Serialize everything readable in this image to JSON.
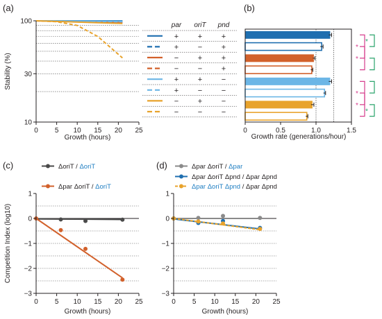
{
  "colors": {
    "dark_blue": "#1f6fb0",
    "light_blue": "#6cb6e6",
    "orange": "#d2612b",
    "gold": "#e8a32c",
    "gray": "#8a8a8a",
    "dark_gray": "#4a4a4a",
    "sig_magenta": "#d63c8c",
    "sig_green": "#2aa36b",
    "label_blue": "#1f7ec2"
  },
  "chart_data": [
    {
      "panel": "(a)",
      "type": "line",
      "xlabel": "Growth (hours)",
      "ylabel": "Stability (%)",
      "scale_y": "log",
      "xlim": [
        0,
        25
      ],
      "ylim": [
        10,
        100
      ],
      "xticks": [
        "0",
        "5",
        "10",
        "15",
        "20",
        "25"
      ],
      "yticks": [
        "10",
        "30",
        "100"
      ],
      "series": [
        {
          "color": "dark_blue",
          "dash": false,
          "x": [
            0,
            21
          ],
          "y": [
            100,
            100
          ]
        },
        {
          "color": "dark_blue",
          "dash": true,
          "x": [
            0,
            21
          ],
          "y": [
            100,
            99
          ]
        },
        {
          "color": "orange",
          "dash": false,
          "x": [
            0,
            21
          ],
          "y": [
            100,
            97
          ]
        },
        {
          "color": "orange",
          "dash": true,
          "x": [
            0,
            21
          ],
          "y": [
            100,
            97
          ]
        },
        {
          "color": "light_blue",
          "dash": false,
          "x": [
            0,
            21
          ],
          "y": [
            100,
            99
          ]
        },
        {
          "color": "light_blue",
          "dash": true,
          "x": [
            0,
            21
          ],
          "y": [
            100,
            98
          ]
        },
        {
          "color": "gold",
          "dash": false,
          "x": [
            0,
            21
          ],
          "y": [
            100,
            94
          ]
        },
        {
          "color": "gold",
          "dash": true,
          "x": [
            0,
            5,
            10,
            15,
            21
          ],
          "y": [
            100,
            98,
            90,
            70,
            43
          ]
        }
      ]
    },
    {
      "panel": "(b)",
      "type": "bar",
      "orientation": "horizontal",
      "xlabel": "Growth rate (generations/hour)",
      "xlim": [
        0,
        1.5
      ],
      "xticks": [
        "0",
        "0.5",
        "1.0",
        "1.5"
      ],
      "reference_lines": [
        1.0,
        1.25
      ],
      "bars": [
        {
          "color": "dark_blue",
          "filled": true,
          "value": 1.2,
          "err": 0.02
        },
        {
          "color": "dark_blue",
          "filled": false,
          "value": 1.08,
          "err": 0.02
        },
        {
          "color": "orange",
          "filled": true,
          "value": 0.97,
          "err": 0.015
        },
        {
          "color": "orange",
          "filled": false,
          "value": 0.94,
          "err": 0.015
        },
        {
          "color": "light_blue",
          "filled": true,
          "value": 1.2,
          "err": 0.02
        },
        {
          "color": "light_blue",
          "filled": false,
          "value": 1.12,
          "err": 0.015
        },
        {
          "color": "gold",
          "filled": true,
          "value": 0.95,
          "err": 0.02
        },
        {
          "color": "gold",
          "filled": false,
          "value": 0.87,
          "err": 0.015
        }
      ],
      "significance": [
        {
          "color": "sig_green",
          "from": 0,
          "to": 1,
          "mark": "*"
        },
        {
          "color": "sig_magenta",
          "from": 0,
          "to": 2,
          "mark": "*"
        },
        {
          "color": "sig_magenta",
          "from": 1,
          "to": 3,
          "mark": "*"
        },
        {
          "color": "sig_green",
          "from": 2,
          "to": 3,
          "mark": ""
        },
        {
          "color": "sig_green",
          "from": 4,
          "to": 5,
          "mark": ""
        },
        {
          "color": "sig_magenta",
          "from": 4,
          "to": 6,
          "mark": "*"
        },
        {
          "color": "sig_magenta",
          "from": 5,
          "to": 7,
          "mark": "*"
        },
        {
          "color": "sig_green",
          "from": 6,
          "to": 7,
          "mark": "*"
        }
      ]
    },
    {
      "panel": "(c)",
      "type": "scatter",
      "xlabel": "Growth (hours)",
      "ylabel": "Competition Index (log10)",
      "xlim": [
        0,
        25
      ],
      "ylim": [
        -3,
        1
      ],
      "xticks": [
        "0",
        "5",
        "10",
        "15",
        "20",
        "25"
      ],
      "yticks": [
        "1",
        "0",
        "−1",
        "−2",
        "−3"
      ],
      "series": [
        {
          "color": "dark_gray",
          "points": [
            [
              6,
              -0.04
            ],
            [
              12,
              -0.1
            ],
            [
              21,
              -0.05
            ]
          ],
          "fit": [
            [
              0,
              -0.02
            ],
            [
              21,
              -0.04
            ]
          ]
        },
        {
          "color": "orange",
          "points": [
            [
              0,
              0
            ],
            [
              6,
              -0.47
            ],
            [
              12,
              -1.22
            ],
            [
              21,
              -2.45
            ]
          ],
          "fit": [
            [
              0,
              0
            ],
            [
              21,
              -2.38
            ]
          ]
        }
      ]
    },
    {
      "panel": "(d)",
      "type": "scatter",
      "xlabel": "Growth (hours)",
      "xlim": [
        0,
        25
      ],
      "ylim": [
        -3,
        1
      ],
      "xticks": [
        "0",
        "5",
        "10",
        "15",
        "20",
        "25"
      ],
      "yticks": [
        "1",
        "0",
        "−1",
        "−2",
        "−3"
      ],
      "series": [
        {
          "color": "gray",
          "points": [
            [
              0,
              0
            ],
            [
              6,
              0.02
            ],
            [
              12,
              0.1
            ],
            [
              21,
              0.02
            ]
          ],
          "fit": [
            [
              0,
              0
            ],
            [
              21,
              0
            ]
          ]
        },
        {
          "color": "dark_blue",
          "points": [
            [
              0,
              0
            ],
            [
              6,
              -0.18
            ],
            [
              12,
              -0.1
            ],
            [
              21,
              -0.38
            ]
          ],
          "fit": [
            [
              0,
              -0.02
            ],
            [
              21,
              -0.42
            ]
          ]
        },
        {
          "color": "gold",
          "points": [
            [
              0,
              0
            ],
            [
              6,
              -0.12
            ],
            [
              12,
              -0.2
            ],
            [
              21,
              -0.42
            ]
          ],
          "fit": [
            [
              0,
              0
            ],
            [
              21,
              -0.45
            ]
          ]
        }
      ]
    }
  ],
  "panel_labels": {
    "a": "(a)",
    "b": "(b)",
    "c": "(c)",
    "d": "(d)"
  },
  "table": {
    "headers": [
      "par",
      "oriT",
      "pnd"
    ],
    "rows": [
      {
        "color": "dark_blue",
        "dash": false,
        "cells": [
          "+",
          "+",
          "+"
        ]
      },
      {
        "color": "dark_blue",
        "dash": true,
        "cells": [
          "+",
          "−",
          "+"
        ]
      },
      {
        "color": "orange",
        "dash": false,
        "cells": [
          "−",
          "+",
          "+"
        ]
      },
      {
        "color": "orange",
        "dash": true,
        "cells": [
          "−",
          "−",
          "+"
        ]
      },
      {
        "color": "light_blue",
        "dash": false,
        "cells": [
          "+",
          "+",
          "−"
        ]
      },
      {
        "color": "light_blue",
        "dash": true,
        "cells": [
          "+",
          "−",
          "−"
        ]
      },
      {
        "color": "gold",
        "dash": false,
        "cells": [
          "−",
          "+",
          "−"
        ]
      },
      {
        "color": "gold",
        "dash": true,
        "cells": [
          "−",
          "−",
          "−"
        ]
      }
    ]
  },
  "legend_c": [
    {
      "color": "dark_gray",
      "black": "ΔoriT / ",
      "blue": "ΔoriT"
    },
    {
      "color": "orange",
      "black": "Δpar ΔoriT / ",
      "blue": "ΔoriT"
    }
  ],
  "legend_d": [
    {
      "color": "gray",
      "black": "Δpar ΔoriT / ",
      "blue": "Δpar",
      "blue_first": false
    },
    {
      "color": "dark_blue",
      "black": "Δpar ΔoriT Δpnd / Δpar Δpnd",
      "blue": "",
      "blue_first": false
    },
    {
      "color": "gold",
      "black": " / Δpar Δpnd",
      "blue": "Δpar ΔoriT Δpnd",
      "blue_first": true
    }
  ]
}
